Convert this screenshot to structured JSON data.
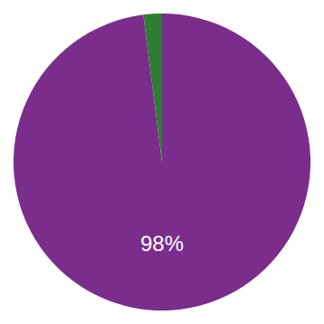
{
  "chart_data": {
    "type": "pie",
    "values": [
      98,
      2
    ],
    "value_labels": [
      "98%",
      null
    ],
    "colors": [
      "#7b2d8b",
      "#2e7d32"
    ]
  }
}
